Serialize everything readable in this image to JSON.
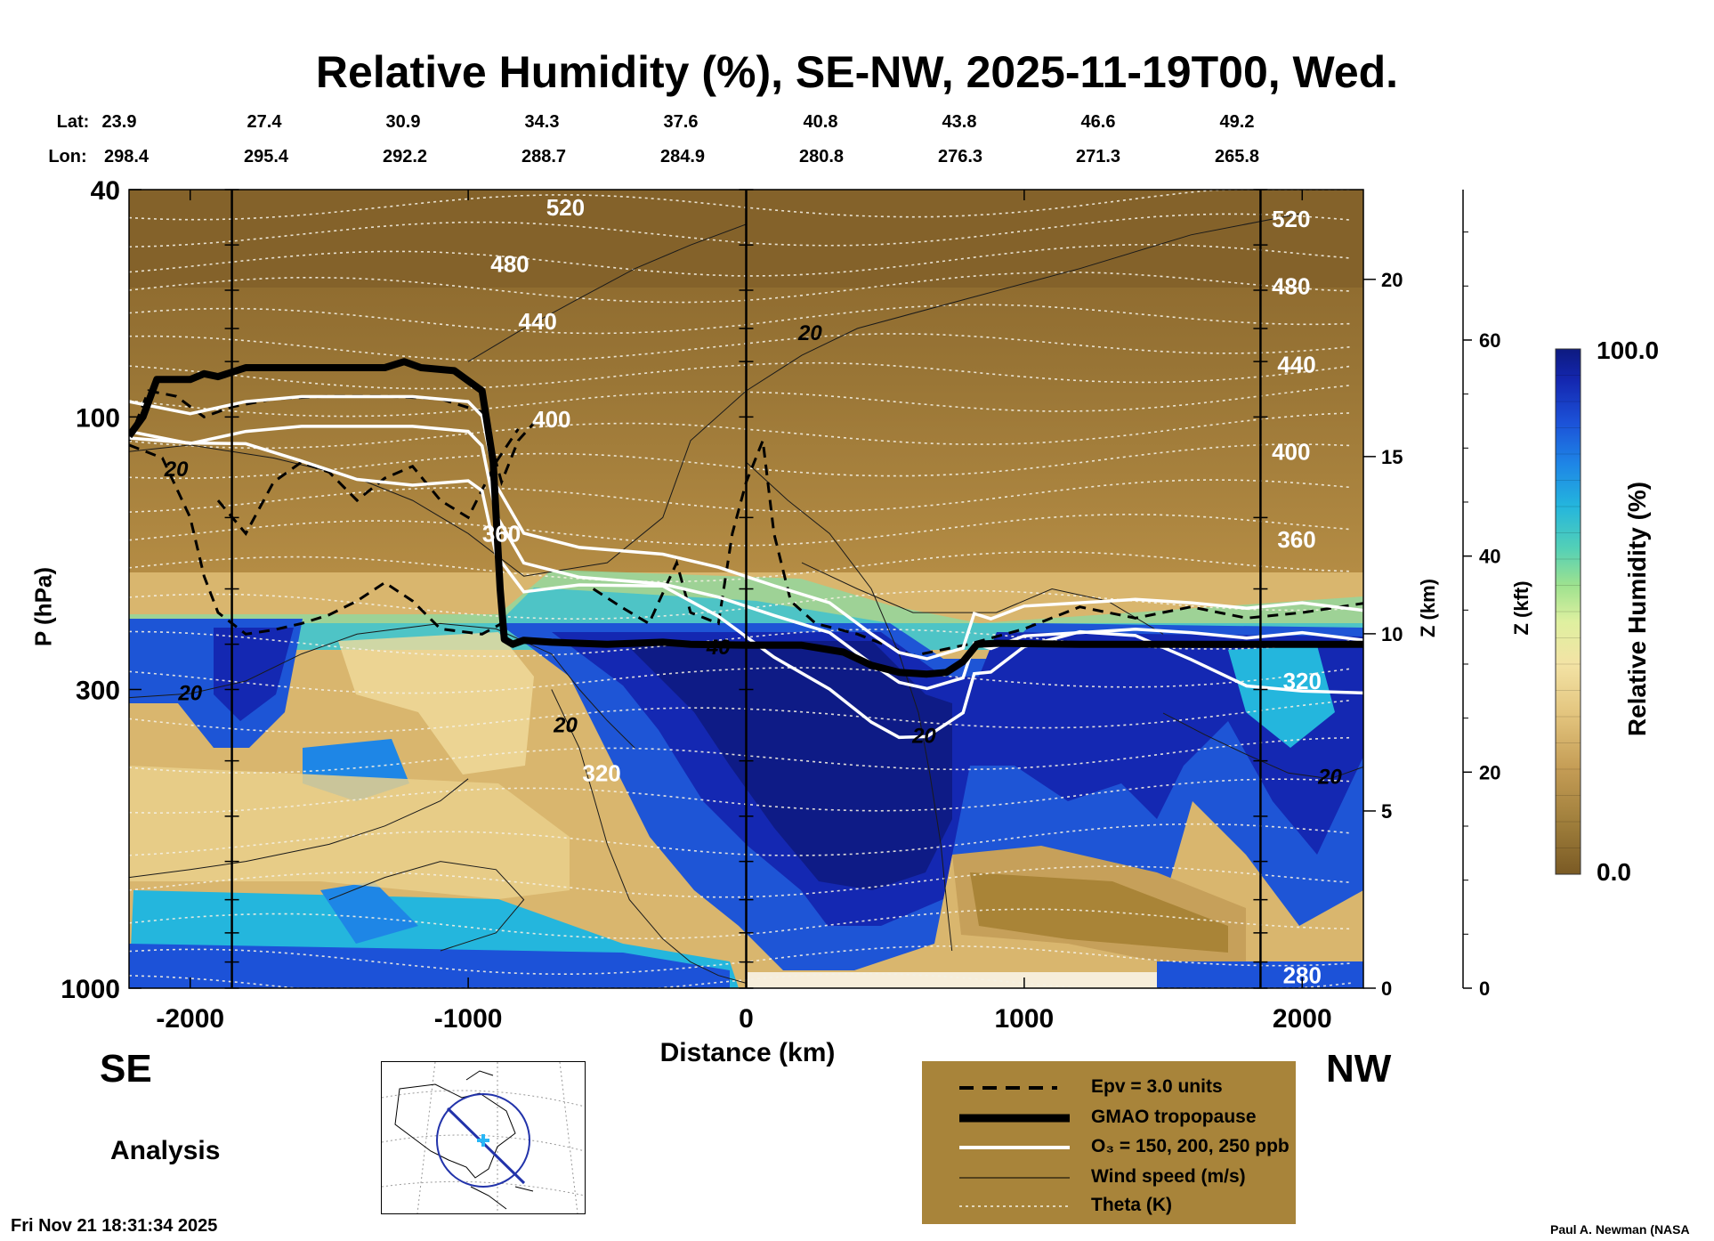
{
  "title": "Relative Humidity (%), SE-NW, 2025-11-19T00, Wed.",
  "latlon": {
    "lat_label": "Lat:",
    "lon_label": "Lon:",
    "lat": [
      "23.9",
      "27.4",
      "30.9",
      "34.3",
      "37.6",
      "40.8",
      "43.8",
      "46.6",
      "49.2"
    ],
    "lon": [
      "298.4",
      "295.4",
      "292.2",
      "288.7",
      "284.9",
      "280.8",
      "276.3",
      "271.3",
      "265.8"
    ]
  },
  "left_dir": "SE",
  "right_dir": "NW",
  "analysis_label": "Analysis",
  "timestamp": "Fri Nov 21 18:31:34 2025",
  "credit": "Paul A. Newman (NASA",
  "legend": {
    "items": [
      {
        "label": "Epv = 3.0 units",
        "style": "dashed-black"
      },
      {
        "label": "GMAO tropopause",
        "style": "thick-black"
      },
      {
        "label": "O₃ = 150, 200, 250 ppb",
        "style": "white"
      },
      {
        "label": "Wind speed (m/s)",
        "style": "thin-black"
      },
      {
        "label": "Theta (K)",
        "style": "dotted-white"
      }
    ],
    "background": "#a8843a"
  },
  "colorbar": {
    "label": "Relative Humidity (%)",
    "max_label": "100.0",
    "min_label": "0.0"
  },
  "chart_data": {
    "type": "heatmap",
    "title": "Relative Humidity (%), SE-NW, 2025-11-19T00, Wed.",
    "xlabel": "Distance (km)",
    "ylabel": "P (hPa)",
    "y2label": "Z (km)",
    "y3label": "Z (kft)",
    "xlim": [
      -2220,
      2220
    ],
    "ylim": [
      1000,
      40
    ],
    "y_scale": "log",
    "x_ticks": [
      -2000,
      -1000,
      0,
      1000,
      2000
    ],
    "y_ticks": [
      40,
      100,
      300,
      1000
    ],
    "z_km_ticks": [
      0,
      5,
      10,
      15,
      20
    ],
    "z_kft_ticks": [
      0,
      20,
      40,
      60
    ],
    "vertical_lines_km": [
      -1850,
      0,
      1850
    ],
    "theta_labels": [
      {
        "value": "520",
        "x": -650,
        "p": 43
      },
      {
        "value": "480",
        "x": -850,
        "p": 54
      },
      {
        "value": "440",
        "x": -750,
        "p": 68
      },
      {
        "value": "400",
        "x": -700,
        "p": 101
      },
      {
        "value": "360",
        "x": -880,
        "p": 160
      },
      {
        "value": "320",
        "x": -520,
        "p": 420
      },
      {
        "value": "520",
        "x": 1960,
        "p": 45
      },
      {
        "value": "480",
        "x": 1960,
        "p": 59
      },
      {
        "value": "440",
        "x": 1980,
        "p": 81
      },
      {
        "value": "400",
        "x": 1960,
        "p": 115
      },
      {
        "value": "360",
        "x": 1980,
        "p": 164
      },
      {
        "value": "320",
        "x": 2000,
        "p": 290
      },
      {
        "value": "280",
        "x": 2000,
        "p": 950
      }
    ],
    "wind_labels": [
      {
        "value": "20",
        "x": 230,
        "p": 71
      },
      {
        "value": "20",
        "x": -2050,
        "p": 123
      },
      {
        "value": "20",
        "x": -2000,
        "p": 303
      },
      {
        "value": "20",
        "x": -650,
        "p": 345
      },
      {
        "value": "40",
        "x": -100,
        "p": 252
      },
      {
        "value": "20",
        "x": 640,
        "p": 360
      },
      {
        "value": "20",
        "x": 2100,
        "p": 425
      }
    ],
    "tropopause": [
      [
        -2220,
        108
      ],
      [
        -2170,
        100
      ],
      [
        -2120,
        86
      ],
      [
        -2070,
        86
      ],
      [
        -2000,
        86
      ],
      [
        -1950,
        84
      ],
      [
        -1900,
        85
      ],
      [
        -1800,
        82
      ],
      [
        -1700,
        82
      ],
      [
        -1500,
        82
      ],
      [
        -1300,
        82
      ],
      [
        -1230,
        80
      ],
      [
        -1170,
        82
      ],
      [
        -1050,
        83
      ],
      [
        -950,
        90
      ],
      [
        -910,
        120
      ],
      [
        -885,
        200
      ],
      [
        -870,
        245
      ],
      [
        -840,
        250
      ],
      [
        -800,
        246
      ],
      [
        -700,
        248
      ],
      [
        -500,
        250
      ],
      [
        -300,
        248
      ],
      [
        -200,
        250
      ],
      [
        0,
        251
      ],
      [
        200,
        251
      ],
      [
        350,
        258
      ],
      [
        450,
        272
      ],
      [
        550,
        280
      ],
      [
        650,
        282
      ],
      [
        720,
        280
      ],
      [
        780,
        268
      ],
      [
        830,
        250
      ],
      [
        900,
        249
      ],
      [
        1200,
        250
      ],
      [
        1600,
        250
      ],
      [
        2000,
        250
      ],
      [
        2220,
        250
      ]
    ],
    "colorscale": {
      "min": 0,
      "max": 100,
      "colors": [
        "#7a5a24",
        "#a07f3c",
        "#c49c55",
        "#e2c37c",
        "#f3e3a5",
        "#dff0a0",
        "#9ee28f",
        "#54d0b6",
        "#24b6dd",
        "#1e86e6",
        "#1c52d8",
        "#1427b0",
        "#0d1a80"
      ]
    }
  }
}
